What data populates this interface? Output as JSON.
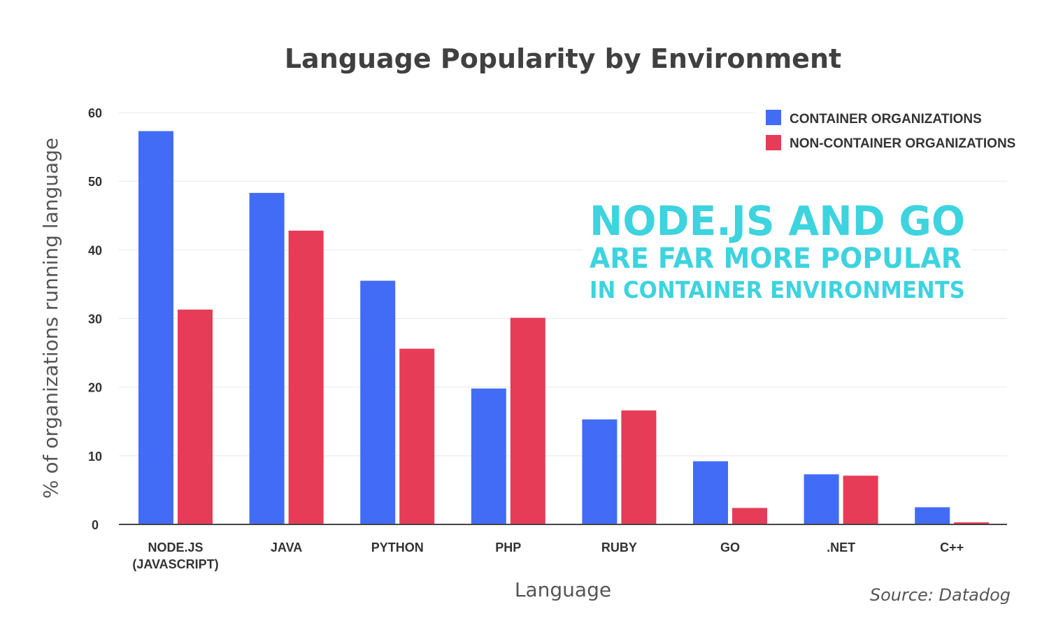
{
  "chart_data": {
    "type": "bar",
    "title": "Language Popularity by Environment",
    "xlabel": "Language",
    "ylabel": "% of organizations running language",
    "ylim": [
      0,
      60
    ],
    "yticks": [
      "0",
      "10",
      "20",
      "30",
      "40",
      "50",
      "60"
    ],
    "grid": true,
    "legend_position": "top-right",
    "categories": [
      [
        "NODE.JS",
        "(JAVASCRIPT)"
      ],
      [
        "JAVA"
      ],
      [
        "PYTHON"
      ],
      [
        "PHP"
      ],
      [
        "RUBY"
      ],
      [
        "GO"
      ],
      [
        ".NET"
      ],
      [
        "C++"
      ]
    ],
    "series": [
      {
        "name": "CONTAINER ORGANIZATIONS",
        "color": "#426cf5",
        "values": [
          57.3,
          48.3,
          35.5,
          19.8,
          15.3,
          9.2,
          7.3,
          2.5
        ]
      },
      {
        "name": "NON-CONTAINER ORGANIZATIONS",
        "color": "#e63c57",
        "values": [
          31.3,
          42.8,
          25.6,
          30.1,
          16.6,
          2.4,
          7.1,
          0.3
        ]
      }
    ],
    "annotation": [
      "NODE.JS AND GO",
      "ARE FAR MORE POPULAR",
      "IN CONTAINER ENVIRONMENTS"
    ],
    "annotation_color": "#3dd3df",
    "source": "Source: Datadog"
  }
}
